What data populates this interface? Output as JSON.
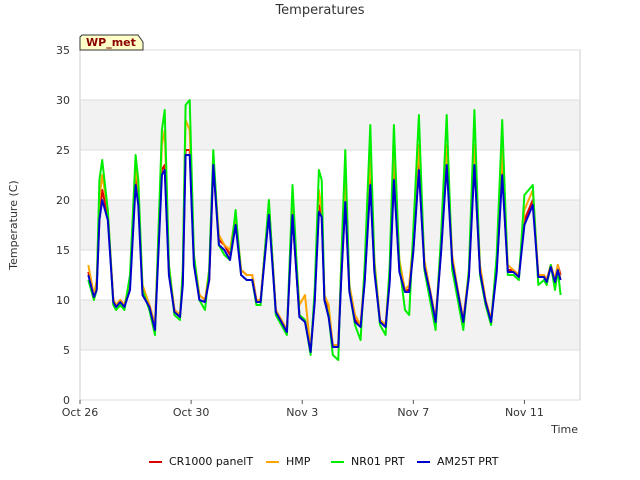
{
  "chart_data": {
    "type": "line",
    "title": "Temperatures",
    "xlabel": "Time",
    "ylabel": "Temperature (C)",
    "ylim": [
      0,
      35
    ],
    "xlim_days": [
      0,
      18
    ],
    "y_ticks": [
      0,
      5,
      10,
      15,
      20,
      25,
      30,
      35
    ],
    "x_ticks": [
      {
        "day": 0,
        "label": "Oct 26"
      },
      {
        "day": 4,
        "label": "Oct 30"
      },
      {
        "day": 8,
        "label": "Nov 3"
      },
      {
        "day": 12,
        "label": "Nov 7"
      },
      {
        "day": 16,
        "label": "Nov 11"
      }
    ],
    "shaded_bands": [
      [
        5,
        10
      ],
      [
        15,
        20
      ],
      [
        25,
        30
      ]
    ],
    "site_badge": "WP_met",
    "x_unit": "days since Oct 26 00:00",
    "x": [
      0.3,
      0.5,
      0.6,
      0.7,
      0.8,
      1.0,
      1.2,
      1.3,
      1.45,
      1.6,
      1.8,
      2.0,
      2.1,
      2.25,
      2.5,
      2.7,
      2.95,
      3.05,
      3.2,
      3.4,
      3.6,
      3.7,
      3.8,
      3.95,
      4.1,
      4.3,
      4.5,
      4.65,
      4.8,
      5.0,
      5.2,
      5.4,
      5.6,
      5.8,
      6.0,
      6.2,
      6.35,
      6.5,
      6.8,
      7.05,
      7.25,
      7.45,
      7.65,
      7.9,
      8.1,
      8.3,
      8.45,
      8.6,
      8.7,
      8.8,
      8.95,
      9.1,
      9.3,
      9.4,
      9.55,
      9.7,
      9.9,
      10.1,
      10.25,
      10.45,
      10.6,
      10.8,
      11.0,
      11.15,
      11.3,
      11.5,
      11.7,
      11.85,
      12.0,
      12.2,
      12.4,
      12.6,
      12.8,
      13.0,
      13.2,
      13.4,
      13.6,
      13.8,
      14.0,
      14.2,
      14.4,
      14.6,
      14.8,
      15.0,
      15.2,
      15.4,
      15.6,
      15.8,
      16.0,
      16.3,
      16.5,
      16.7,
      16.8,
      16.95,
      17.1,
      17.2,
      17.3
    ],
    "series": [
      {
        "name": "CR1000 panelT",
        "color": "#dd0000",
        "values": [
          12.8,
          10.5,
          11.5,
          18.0,
          21.0,
          18.5,
          10.0,
          9.5,
          10.0,
          9.5,
          11.5,
          22.0,
          20.0,
          11.0,
          9.5,
          7.5,
          23.0,
          23.5,
          13.0,
          9.0,
          8.5,
          12.0,
          25.0,
          25.0,
          14.0,
          10.5,
          10.0,
          12.0,
          23.5,
          16.0,
          15.5,
          14.5,
          18.0,
          13.0,
          12.5,
          12.5,
          10.0,
          10.0,
          19.5,
          9.0,
          8.0,
          7.0,
          18.5,
          8.5,
          8.0,
          5.0,
          10.0,
          19.5,
          18.5,
          10.5,
          8.5,
          5.5,
          5.5,
          12.0,
          20.0,
          11.0,
          8.0,
          7.5,
          12.0,
          22.0,
          13.0,
          8.0,
          7.5,
          12.0,
          22.5,
          13.0,
          11.0,
          11.0,
          15.0,
          23.5,
          13.5,
          11.0,
          8.0,
          15.0,
          24.0,
          14.0,
          11.0,
          8.0,
          12.5,
          24.0,
          13.0,
          10.0,
          8.0,
          13.0,
          23.0,
          13.0,
          13.0,
          12.5,
          18.0,
          20.0,
          12.5,
          12.5,
          12.0,
          13.5,
          12.0,
          13.5,
          12.5
        ]
      },
      {
        "name": "HMP",
        "color": "#ffa500",
        "values": [
          13.5,
          10.5,
          12.0,
          20.0,
          22.5,
          19.0,
          10.0,
          9.5,
          10.0,
          9.5,
          12.0,
          23.5,
          21.0,
          11.5,
          9.5,
          7.5,
          25.5,
          27.0,
          13.5,
          9.0,
          8.5,
          13.0,
          28.0,
          27.0,
          14.5,
          10.5,
          10.0,
          13.0,
          24.0,
          16.5,
          15.5,
          15.0,
          18.5,
          13.0,
          12.5,
          12.5,
          10.0,
          10.0,
          19.5,
          9.0,
          8.0,
          7.0,
          19.5,
          9.5,
          10.5,
          5.0,
          10.5,
          21.0,
          19.0,
          10.5,
          9.5,
          5.5,
          5.5,
          13.0,
          22.0,
          11.5,
          8.5,
          7.5,
          13.0,
          24.5,
          14.0,
          8.0,
          7.5,
          13.0,
          25.0,
          14.0,
          11.0,
          11.5,
          16.0,
          25.5,
          14.0,
          11.0,
          8.0,
          16.0,
          25.5,
          14.5,
          11.0,
          8.0,
          13.0,
          25.5,
          13.5,
          10.0,
          8.0,
          14.0,
          25.0,
          13.5,
          13.0,
          12.5,
          19.0,
          21.0,
          12.5,
          12.5,
          12.0,
          13.5,
          12.0,
          13.5,
          12.0
        ]
      },
      {
        "name": "NR01 PRT",
        "color": "#00ee00",
        "values": [
          12.0,
          10.0,
          11.0,
          22.0,
          24.0,
          19.0,
          9.5,
          9.0,
          9.5,
          9.0,
          12.5,
          24.5,
          22.0,
          11.0,
          9.0,
          6.5,
          27.0,
          29.0,
          13.5,
          8.5,
          8.0,
          13.0,
          29.5,
          30.0,
          14.5,
          10.0,
          9.0,
          13.0,
          25.0,
          15.5,
          14.5,
          14.0,
          19.0,
          12.5,
          12.0,
          12.0,
          9.5,
          9.5,
          20.0,
          8.5,
          7.5,
          6.5,
          21.5,
          8.5,
          8.0,
          4.5,
          11.0,
          23.0,
          22.0,
          10.0,
          8.5,
          4.5,
          4.0,
          13.5,
          25.0,
          11.0,
          7.5,
          6.0,
          13.5,
          27.5,
          13.5,
          7.5,
          6.5,
          13.5,
          27.5,
          13.5,
          9.0,
          8.5,
          17.0,
          28.5,
          13.0,
          10.0,
          7.0,
          16.5,
          28.5,
          13.0,
          10.0,
          7.0,
          13.0,
          29.0,
          12.5,
          9.5,
          7.5,
          14.5,
          28.0,
          12.5,
          12.5,
          12.0,
          20.5,
          21.5,
          11.5,
          12.0,
          11.5,
          13.5,
          11.0,
          13.0,
          10.5
        ]
      },
      {
        "name": "AM25T PRT",
        "color": "#0000cc",
        "values": [
          12.5,
          10.3,
          11.0,
          18.0,
          20.0,
          18.0,
          9.8,
          9.3,
          9.8,
          9.3,
          11.0,
          21.5,
          19.5,
          10.5,
          9.3,
          7.0,
          22.5,
          23.0,
          12.5,
          8.8,
          8.3,
          11.5,
          24.5,
          24.5,
          13.5,
          10.0,
          9.8,
          12.0,
          23.5,
          15.5,
          15.0,
          14.0,
          17.5,
          12.5,
          12.0,
          12.0,
          9.8,
          9.8,
          18.5,
          8.8,
          7.8,
          6.8,
          18.5,
          8.3,
          7.8,
          4.8,
          9.8,
          18.8,
          18.3,
          10.0,
          8.3,
          5.3,
          5.3,
          11.8,
          19.8,
          10.8,
          7.8,
          7.3,
          11.8,
          21.5,
          12.8,
          7.8,
          7.3,
          11.8,
          22.0,
          12.8,
          10.8,
          10.8,
          14.8,
          23.0,
          13.3,
          10.8,
          7.8,
          14.8,
          23.5,
          13.8,
          10.8,
          7.8,
          12.3,
          23.5,
          12.8,
          9.8,
          7.8,
          12.8,
          22.5,
          12.8,
          12.8,
          12.3,
          17.5,
          19.5,
          12.3,
          12.3,
          11.8,
          13.3,
          11.8,
          13.0,
          12.0
        ]
      }
    ]
  }
}
